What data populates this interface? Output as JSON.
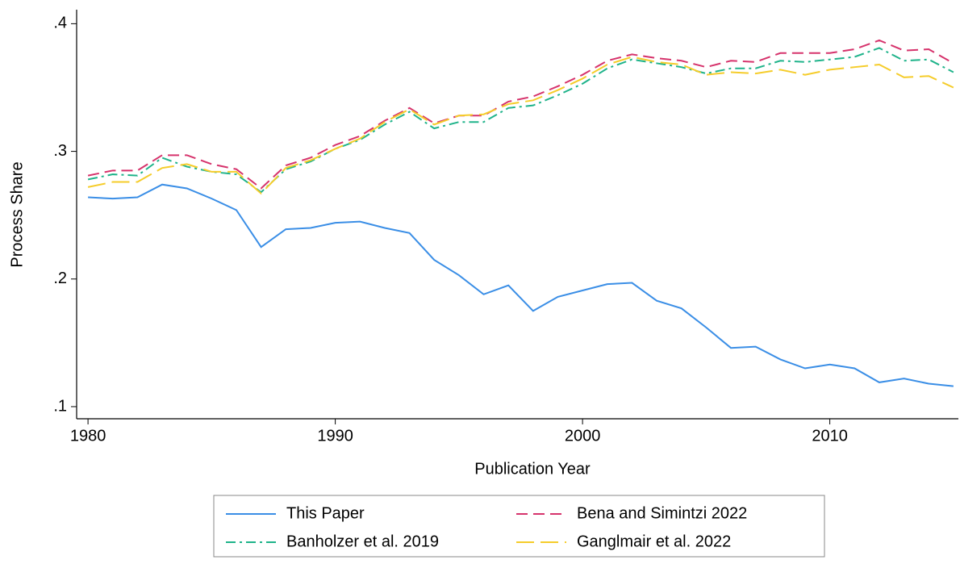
{
  "chart_data": {
    "type": "line",
    "xlabel": "Publication Year",
    "ylabel": "Process Share",
    "x": [
      1980,
      1981,
      1982,
      1983,
      1984,
      1985,
      1986,
      1987,
      1988,
      1989,
      1990,
      1991,
      1992,
      1993,
      1994,
      1995,
      1996,
      1997,
      1998,
      1999,
      2000,
      2001,
      2002,
      2003,
      2004,
      2005,
      2006,
      2007,
      2008,
      2009,
      2010,
      2011,
      2012,
      2013,
      2014,
      2015
    ],
    "series": [
      {
        "name": "This Paper",
        "color": "#3a8ee6",
        "dash": "solid",
        "values": [
          0.264,
          0.263,
          0.264,
          0.274,
          0.271,
          0.263,
          0.254,
          0.225,
          0.239,
          0.24,
          0.244,
          0.245,
          0.24,
          0.236,
          0.215,
          0.203,
          0.188,
          0.195,
          0.175,
          0.186,
          0.191,
          0.196,
          0.197,
          0.183,
          0.177,
          0.162,
          0.146,
          0.147,
          0.137,
          0.13,
          0.133,
          0.13,
          0.119,
          0.122,
          0.118,
          0.116
        ]
      },
      {
        "name": "Bena and Simintzi 2022",
        "color": "#d6336c",
        "dash": "dashed",
        "values": [
          0.281,
          0.285,
          0.285,
          0.297,
          0.297,
          0.29,
          0.286,
          0.271,
          0.289,
          0.295,
          0.305,
          0.312,
          0.324,
          0.334,
          0.322,
          0.328,
          0.328,
          0.339,
          0.343,
          0.351,
          0.36,
          0.371,
          0.376,
          0.373,
          0.371,
          0.366,
          0.371,
          0.37,
          0.377,
          0.377,
          0.377,
          0.38,
          0.387,
          0.379,
          0.38,
          0.369
        ]
      },
      {
        "name": "Banholzer et al. 2019",
        "color": "#1fb38a",
        "dash": "dashdot",
        "values": [
          0.278,
          0.282,
          0.281,
          0.295,
          0.288,
          0.284,
          0.282,
          0.268,
          0.286,
          0.292,
          0.302,
          0.309,
          0.321,
          0.331,
          0.318,
          0.323,
          0.323,
          0.334,
          0.336,
          0.344,
          0.353,
          0.365,
          0.372,
          0.369,
          0.366,
          0.361,
          0.365,
          0.365,
          0.371,
          0.37,
          0.372,
          0.374,
          0.381,
          0.371,
          0.372,
          0.362
        ]
      },
      {
        "name": "Ganglmair et al. 2022",
        "color": "#f5cc2a",
        "dash": "longdash",
        "values": [
          0.272,
          0.276,
          0.276,
          0.287,
          0.29,
          0.284,
          0.284,
          0.267,
          0.287,
          0.293,
          0.302,
          0.31,
          0.323,
          0.333,
          0.321,
          0.328,
          0.329,
          0.337,
          0.34,
          0.348,
          0.357,
          0.368,
          0.374,
          0.37,
          0.368,
          0.36,
          0.362,
          0.361,
          0.364,
          0.36,
          0.364,
          0.366,
          0.368,
          0.358,
          0.359,
          0.35
        ]
      }
    ],
    "xlim": [
      1979.54,
      2015.2
    ],
    "xticks": [
      1980,
      1990,
      2000,
      2010
    ],
    "ylim": [
      0.0905,
      0.411
    ],
    "yticks": [
      {
        "value": 0.1,
        "label": ".1"
      },
      {
        "value": 0.2,
        "label": ".2"
      },
      {
        "value": 0.3,
        "label": ".3"
      },
      {
        "value": 0.4,
        "label": ".4"
      }
    ],
    "grid": false,
    "legend": "bottom"
  }
}
